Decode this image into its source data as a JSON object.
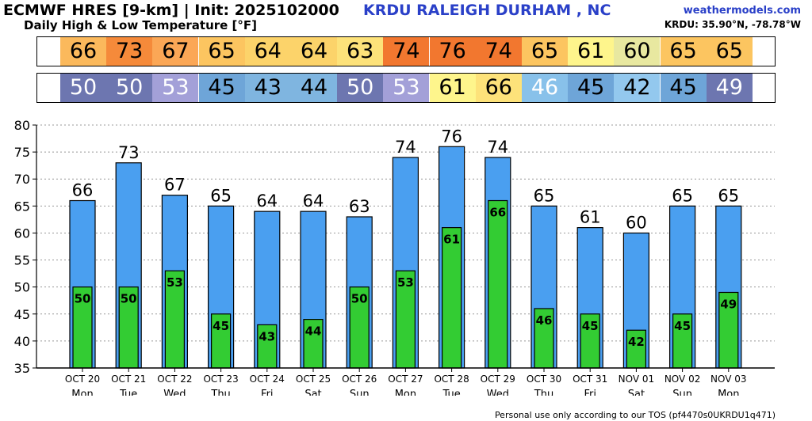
{
  "header": {
    "title": "ECMWF HRES [9-km] | Init: 2025102000",
    "subtitle": "Daily High & Low Temperature [°F]",
    "location": "KRDU RALEIGH DURHAM , NC",
    "site": "weathermodels.com",
    "coords": "KRDU: 35.90°N, -78.78°W"
  },
  "footer": {
    "note": "Personal use only according to our TOS (pf4470s0UKRDU1q471)"
  },
  "colors": {
    "high_bar": "#4a9ff0",
    "low_bar": "#33cc33",
    "high_strip": [
      "#fbb95c",
      "#f58a3a",
      "#fba756",
      "#fcc560",
      "#fcd36a",
      "#fcd36a",
      "#fde27a",
      "#f2772f",
      "#f2772f",
      "#f2772f",
      "#fcc560",
      "#fef58c",
      "#e8e8a0",
      "#fcc560",
      "#fcc560"
    ],
    "low_strip": [
      "#6d76b0",
      "#6d76b0",
      "#a3a0d8",
      "#6ea5d8",
      "#7fb5e0",
      "#7fb5e0",
      "#6d76b0",
      "#a3a0d8",
      "#fef58c",
      "#fde27a",
      "#88c1ea",
      "#6ea5d8",
      "#93c8ee",
      "#6ea5d8",
      "#6d76b0"
    ]
  },
  "chart_data": {
    "type": "bar",
    "categories": [
      "OCT 20",
      "OCT 21",
      "OCT 22",
      "OCT 23",
      "OCT 24",
      "OCT 25",
      "OCT 26",
      "OCT 27",
      "OCT 28",
      "OCT 29",
      "OCT 30",
      "OCT 31",
      "NOV 01",
      "NOV 02",
      "NOV 03"
    ],
    "weekdays": [
      "Mon",
      "Tue",
      "Wed",
      "Thu",
      "Fri",
      "Sat",
      "Sun",
      "Mon",
      "Tue",
      "Wed",
      "Thu",
      "Fri",
      "Sat",
      "Sun",
      "Mon"
    ],
    "series": [
      {
        "name": "Daily High",
        "values": [
          66,
          73,
          67,
          65,
          64,
          64,
          63,
          74,
          76,
          74,
          65,
          61,
          60,
          65,
          65
        ],
        "labels": [
          "66",
          "73",
          "67",
          "65",
          "64",
          "64",
          "63",
          "74",
          "76",
          "74",
          "65",
          "61",
          "60",
          "65",
          "65"
        ]
      },
      {
        "name": "Daily Low",
        "values": [
          50,
          50,
          53,
          45,
          43,
          44,
          50,
          53,
          61,
          66,
          46,
          45,
          42,
          45,
          49
        ],
        "labels": [
          "50",
          "50",
          "53",
          "45",
          "43",
          "44",
          "50",
          "53",
          "61",
          "66",
          "46",
          "45",
          "42",
          "45",
          "49"
        ]
      }
    ],
    "ylim": [
      35,
      80
    ],
    "yticks": [
      35,
      40,
      45,
      50,
      55,
      60,
      65,
      70,
      75,
      80
    ],
    "ytick_labels": [
      "35",
      "40",
      "45",
      "50",
      "55",
      "60",
      "65",
      "70",
      "75",
      "80"
    ],
    "grid": true
  }
}
